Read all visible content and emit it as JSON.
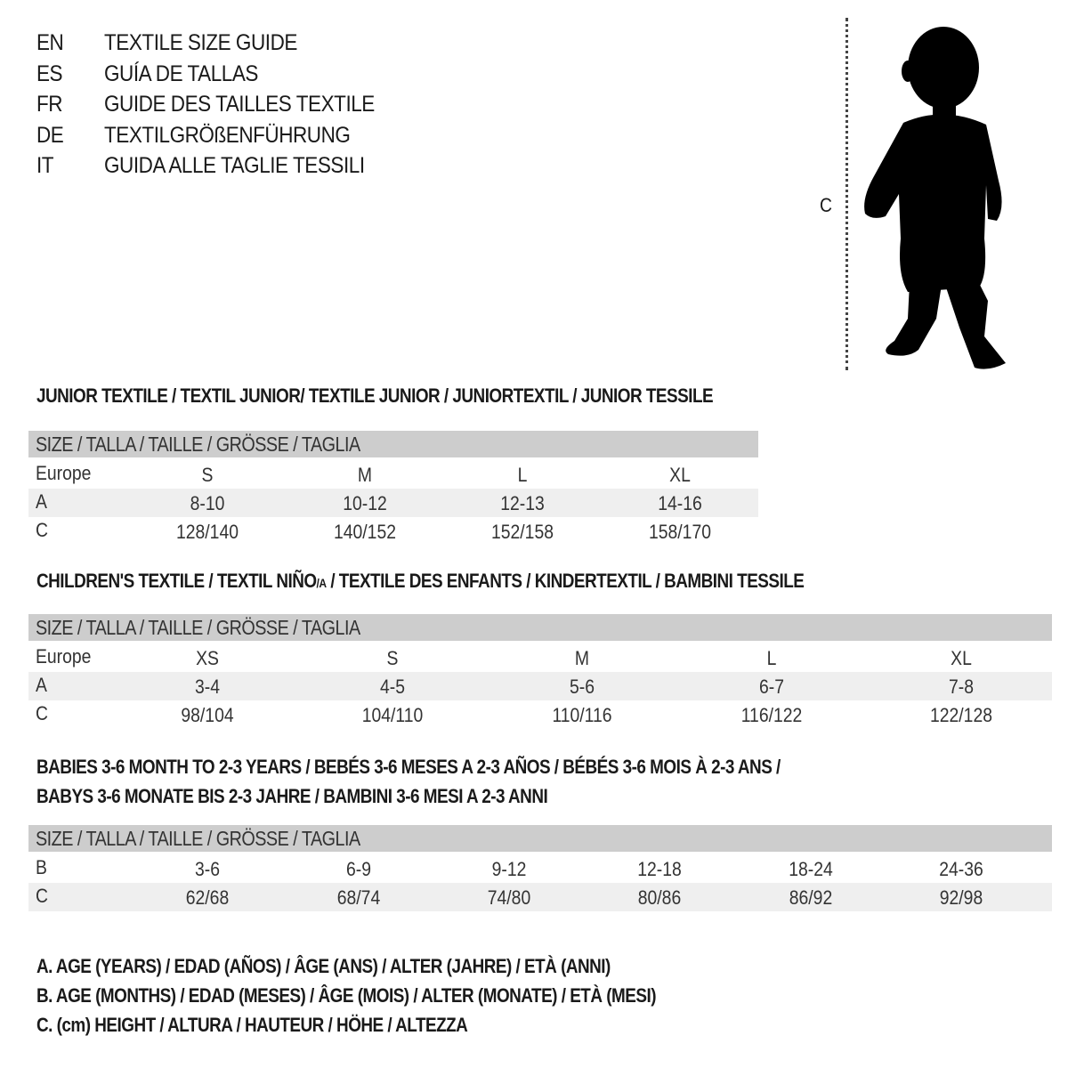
{
  "titles": [
    {
      "code": "EN",
      "text": "TEXTILE SIZE GUIDE"
    },
    {
      "code": "ES",
      "text": "GUÍA DE TALLAS"
    },
    {
      "code": "FR",
      "text": "GUIDE DES TAILLES TEXTILE"
    },
    {
      "code": "DE",
      "text": "TEXTILGRÖßENFÜHRUNG"
    },
    {
      "code": "IT",
      "text": "GUIDA ALLE TAGLIE TESSILI"
    }
  ],
  "figure": {
    "measure_label": "C",
    "icon": "child-silhouette-icon"
  },
  "colors": {
    "header_bar": "#cdcdcd",
    "alt_row": "#efefef"
  },
  "junior": {
    "title": "JUNIOR TEXTILE / TEXTIL JUNIOR/ TEXTILE JUNIOR / JUNIORTEXTIL / JUNIOR TESSILE",
    "header": "SIZE / TALLA / TAILLE / GRÖSSE / TAGLIA",
    "rows": [
      {
        "label": "Europe",
        "cells": [
          "S",
          "M",
          "L",
          "XL"
        ]
      },
      {
        "label": "A",
        "cells": [
          "8-10",
          "10-12",
          "12-13",
          "14-16"
        ]
      },
      {
        "label": "C",
        "cells": [
          "128/140",
          "140/152",
          "152/158",
          "158/170"
        ]
      }
    ]
  },
  "children": {
    "title_before": "CHILDREN'S TEXTILE / TEXTIL NIÑO",
    "title_sub": "/A",
    "title_after": " / TEXTILE DES ENFANTS / KINDERTEXTIL / BAMBINI TESSILE",
    "header": "SIZE / TALLA / TAILLE / GRÖSSE / TAGLIA",
    "rows": [
      {
        "label": "Europe",
        "cells": [
          "XS",
          "S",
          "M",
          "L",
          "XL"
        ]
      },
      {
        "label": "A",
        "cells": [
          "3-4",
          "4-5",
          "5-6",
          "6-7",
          "7-8"
        ]
      },
      {
        "label": "C",
        "cells": [
          "98/104",
          "104/110",
          "110/116",
          "116/122",
          "122/128"
        ]
      }
    ]
  },
  "babies": {
    "title_line1": "BABIES 3-6 MONTH TO 2-3 YEARS / BEBÉS 3-6 MESES A 2-3 AÑOS / BÉBÉS 3-6 MOIS À 2-3 ANS /",
    "title_line2": "BABYS 3-6 MONATE BIS 2-3 JAHRE / BAMBINI 3-6 MESI A 2-3 ANNI",
    "header": "SIZE / TALLA / TAILLE / GRÖSSE / TAGLIA",
    "rows": [
      {
        "label": "B",
        "cells": [
          "3-6",
          "6-9",
          "9-12",
          "12-18",
          "18-24",
          "24-36"
        ]
      },
      {
        "label": "C",
        "cells": [
          "62/68",
          "68/74",
          "74/80",
          "80/86",
          "86/92",
          "92/98"
        ]
      }
    ]
  },
  "legend": [
    "A. AGE (YEARS) / EDAD (AÑOS) / ÂGE (ANS) / ALTER (JAHRE) / ETÀ (ANNI)",
    "B. AGE (MONTHS) / EDAD (MESES) / ÂGE (MOIS) / ALTER (MONATE) / ETÀ (MESI)",
    "C. (cm) HEIGHT / ALTURA / HAUTEUR / HÖHE / ALTEZZA"
  ]
}
